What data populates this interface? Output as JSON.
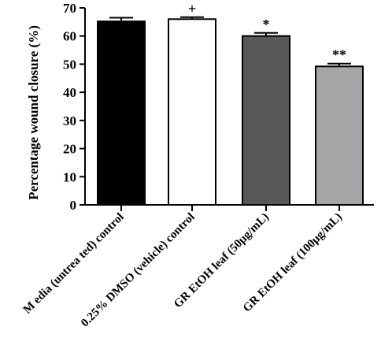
{
  "chart_data": {
    "type": "bar",
    "title": "",
    "xlabel": "",
    "ylabel": "Percentage wound closure (%)",
    "ylim": [
      0,
      70
    ],
    "yticks": [
      0,
      10,
      20,
      30,
      40,
      50,
      60,
      70
    ],
    "grid": false,
    "categories": [
      "M edia (untrea ted) control",
      "0.25% DMSO (vehicle) control",
      "GR EtOH leaf (50μg/mL)",
      "GR EtOH leaf (100μg/mL)"
    ],
    "values": [
      65.2,
      66.0,
      60.0,
      49.2
    ],
    "errors": [
      1.3,
      0.7,
      1.1,
      1.0
    ],
    "significance": [
      "",
      "+",
      "*",
      "**"
    ],
    "colors": [
      "#000000",
      "#ffffff",
      "#585858",
      "#a5a5a8"
    ]
  }
}
